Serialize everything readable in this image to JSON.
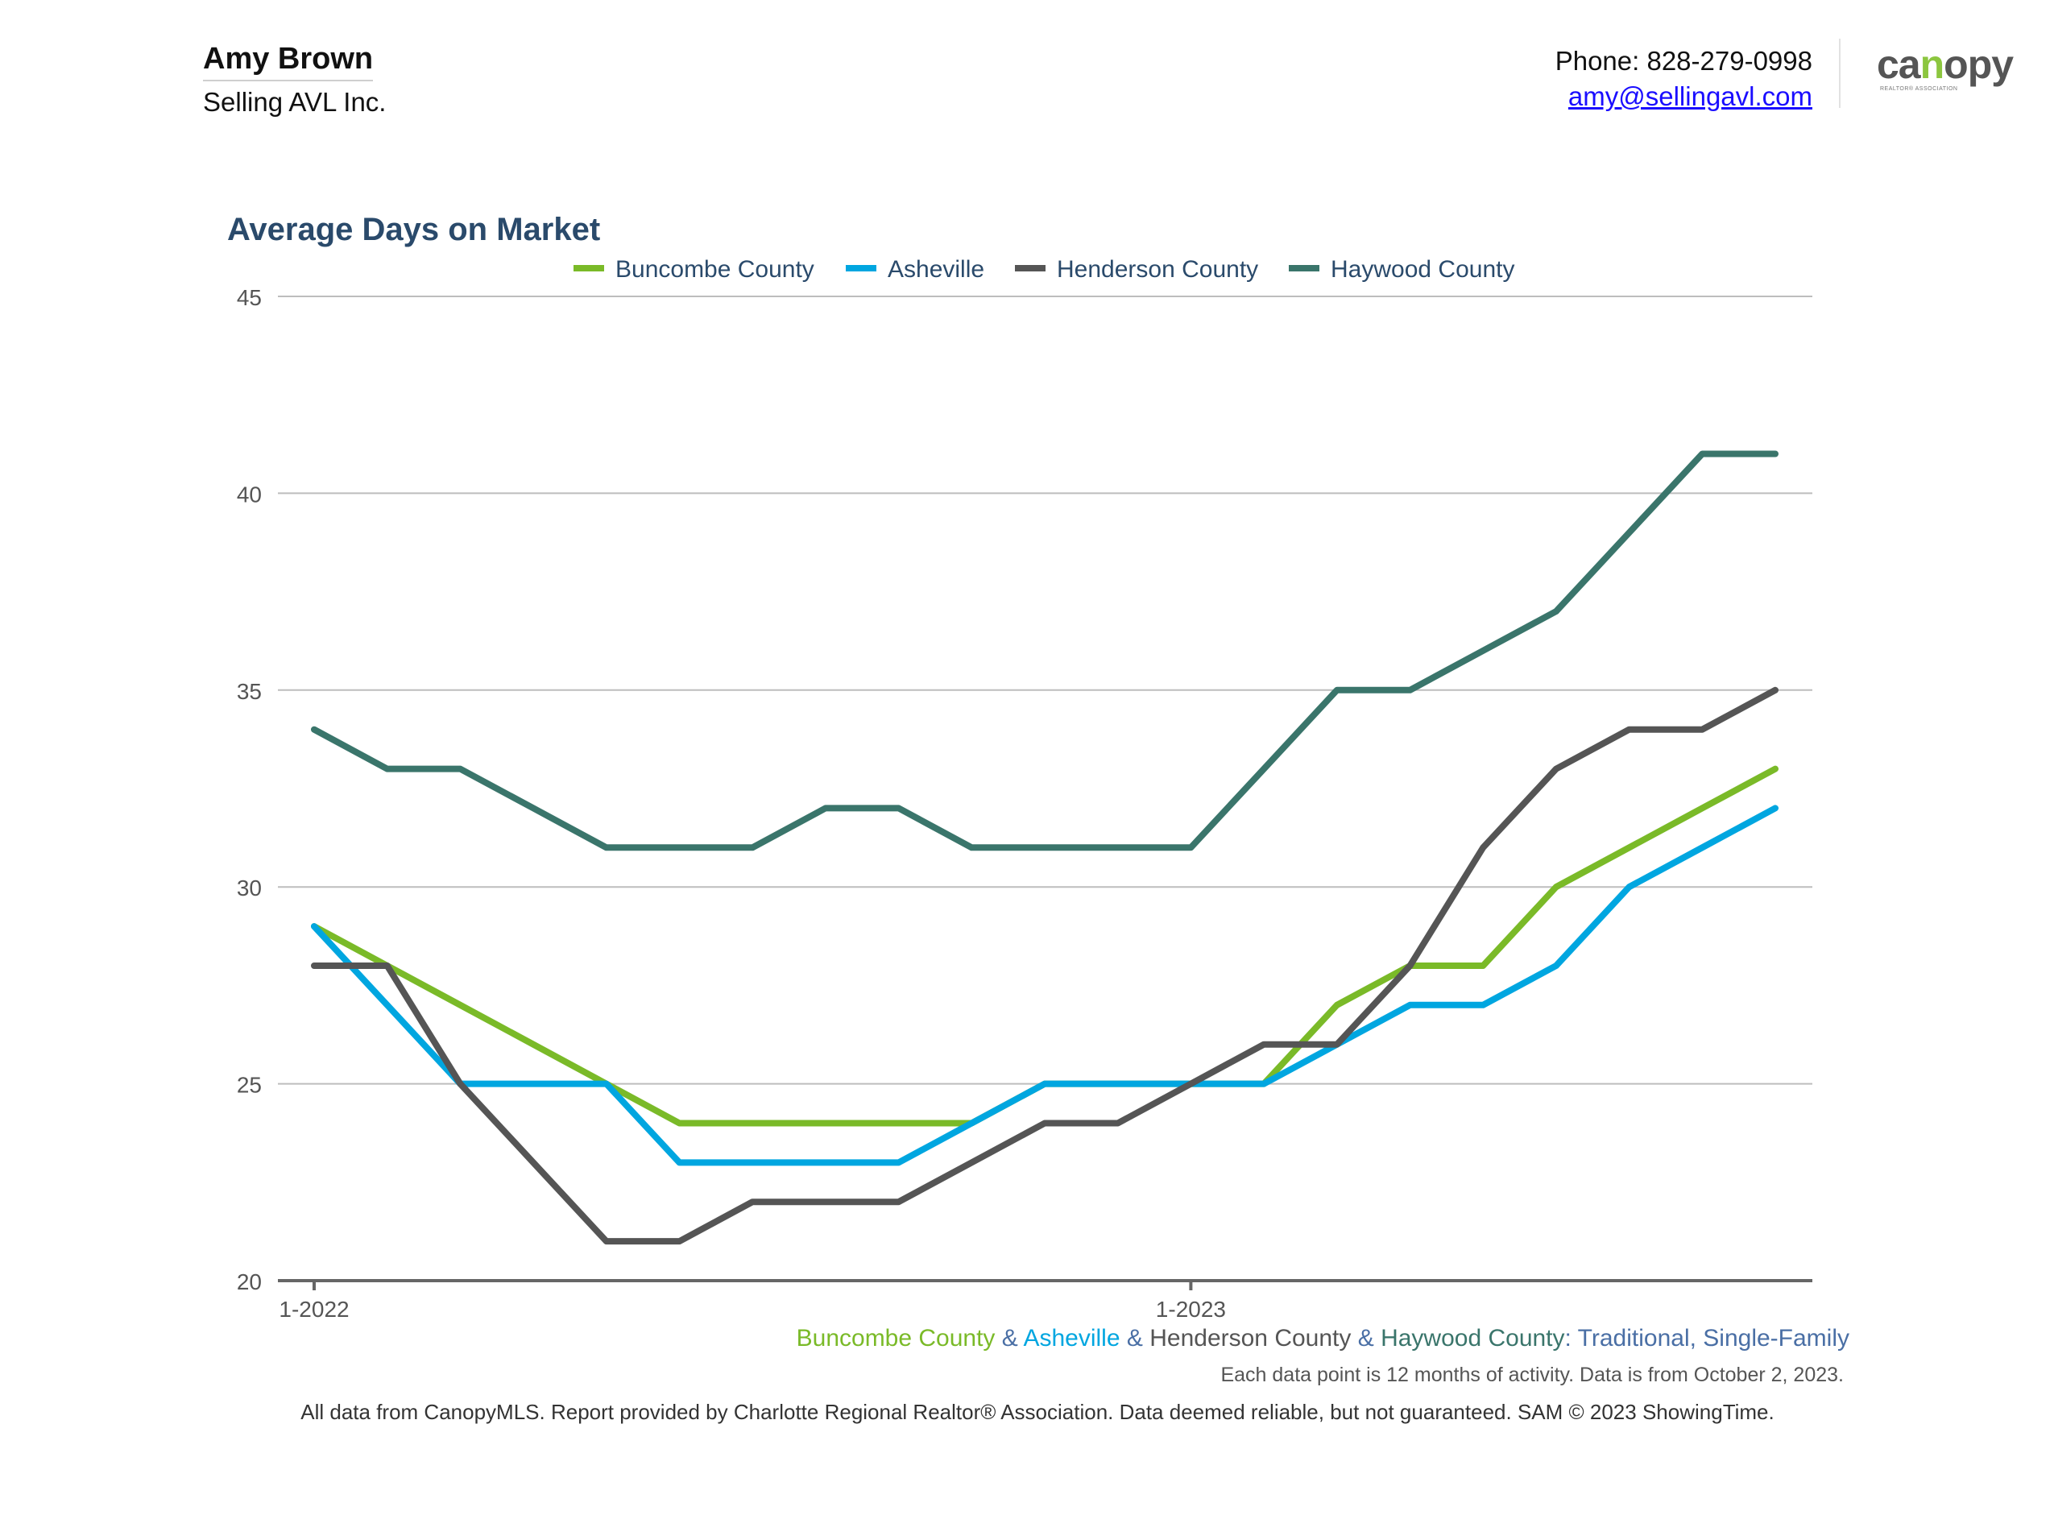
{
  "header": {
    "agent_name": "Amy Brown",
    "company": "Selling AVL Inc.",
    "phone": "Phone: 828-279-0998",
    "email": "amy@sellingavl.com",
    "logo_text": "canopy",
    "logo_sub": "REALTOR® ASSOCIATION"
  },
  "chart_data": {
    "type": "line",
    "title": "Average Days on Market",
    "xlabel": "",
    "ylabel": "",
    "ylim": [
      20,
      45
    ],
    "yticks": [
      20,
      25,
      30,
      35,
      40,
      45
    ],
    "x": [
      "1-2022",
      "2-2022",
      "3-2022",
      "4-2022",
      "5-2022",
      "6-2022",
      "7-2022",
      "8-2022",
      "9-2022",
      "10-2022",
      "11-2022",
      "12-2022",
      "1-2023",
      "2-2023",
      "3-2023",
      "4-2023",
      "5-2023",
      "6-2023",
      "7-2023",
      "8-2023",
      "9-2023",
      "10-2023"
    ],
    "xtick_labels": [
      "1-2022",
      "1-2023"
    ],
    "grid": true,
    "legend_position": "top",
    "series": [
      {
        "name": "Buncombe County",
        "color": "#7aba28",
        "values": [
          29,
          28,
          27,
          26,
          25,
          24,
          24,
          24,
          24,
          24,
          25,
          25,
          25,
          25,
          27,
          28,
          28,
          30,
          31,
          32,
          33,
          null
        ]
      },
      {
        "name": "Asheville",
        "color": "#00a6e0",
        "values": [
          29,
          27,
          25,
          25,
          25,
          23,
          23,
          23,
          23,
          24,
          25,
          25,
          25,
          25,
          26,
          27,
          27,
          28,
          30,
          31,
          32,
          null
        ]
      },
      {
        "name": "Henderson County",
        "color": "#555555",
        "values": [
          28,
          28,
          25,
          23,
          21,
          21,
          22,
          22,
          22,
          23,
          24,
          24,
          25,
          26,
          26,
          28,
          31,
          33,
          34,
          34,
          35,
          null
        ]
      },
      {
        "name": "Haywood County",
        "color": "#3a756b",
        "values": [
          34,
          33,
          33,
          32,
          31,
          31,
          31,
          32,
          32,
          31,
          31,
          31,
          31,
          33,
          35,
          35,
          36,
          37,
          39,
          41,
          41,
          null
        ]
      }
    ],
    "source_line": {
      "parts": [
        {
          "text": "Buncombe County",
          "color": "#7aba28"
        },
        {
          "text": " & ",
          "color": "#4a6fa5"
        },
        {
          "text": "Asheville",
          "color": "#00a6e0"
        },
        {
          "text": " & ",
          "color": "#4a6fa5"
        },
        {
          "text": "Henderson County",
          "color": "#555555"
        },
        {
          "text": " & ",
          "color": "#4a6fa5"
        },
        {
          "text": "Haywood County",
          "color": "#3a756b"
        },
        {
          "text": ": Traditional, Single-Family",
          "color": "#4a6fa5"
        }
      ]
    },
    "note": "Each data point is 12 months of activity. Data is from October 2, 2023.",
    "footer": "All data from CanopyMLS. Report provided by Charlotte Regional Realtor® Association. Data deemed reliable, but not guaranteed. SAM © 2023 ShowingTime."
  }
}
